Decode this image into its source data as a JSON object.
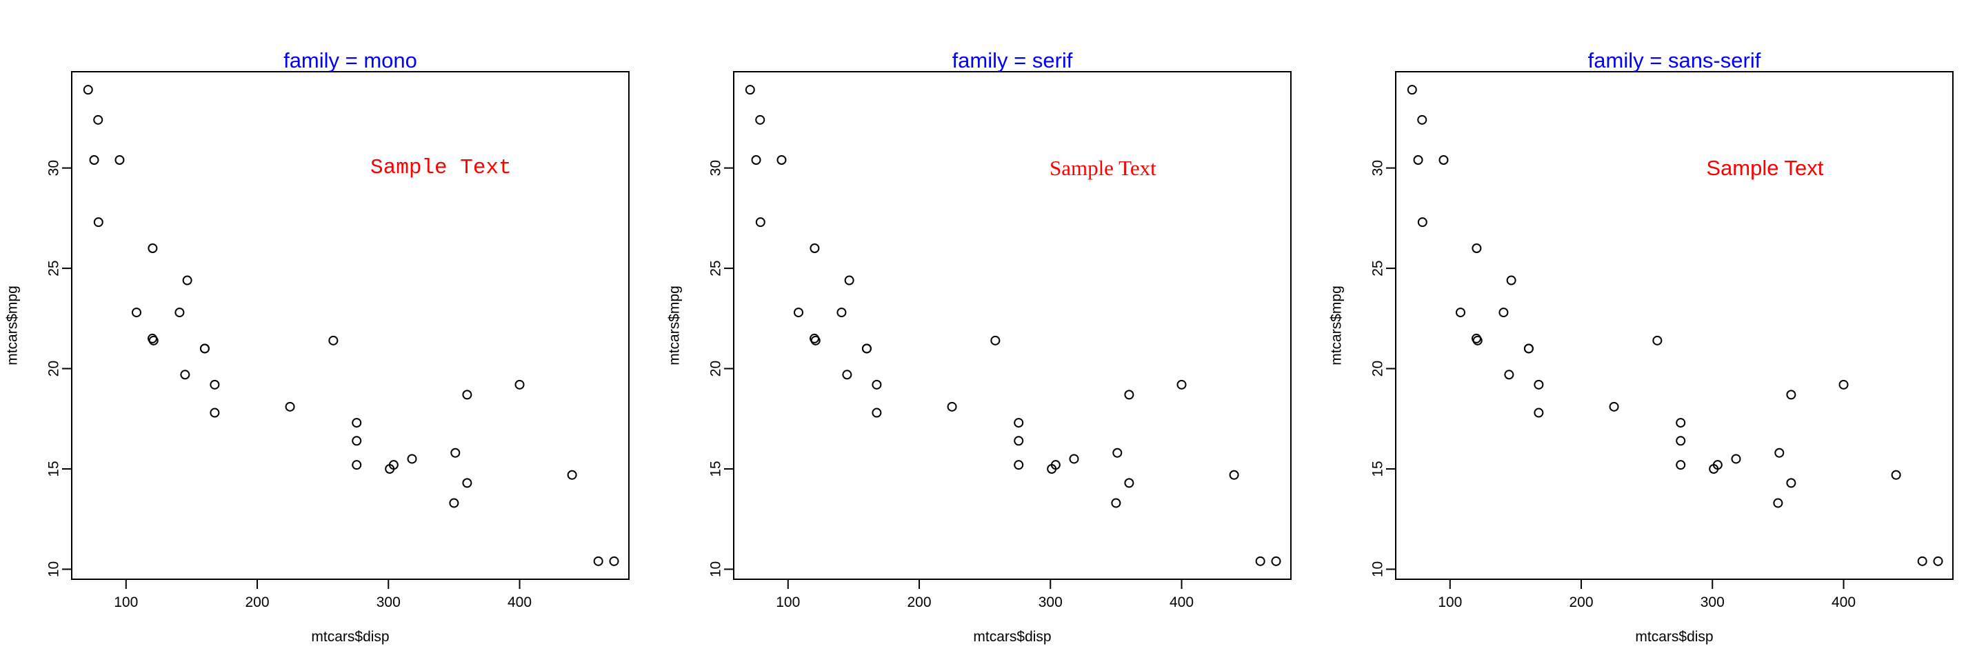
{
  "chart_data": [
    {
      "type": "scatter",
      "title": "family =  mono",
      "xlabel": "mtcars$disp",
      "ylabel": "mtcars$mpg",
      "xticks": [
        100,
        200,
        300,
        400
      ],
      "yticks": [
        10,
        15,
        20,
        25,
        30
      ],
      "xlim": [
        58.6,
        483.3
      ],
      "ylim": [
        9.5,
        34.8
      ],
      "annotation": {
        "text": "Sample Text",
        "family": "mono",
        "x": 340,
        "y": 30,
        "color": "#ff0000"
      },
      "points": [
        [
          160,
          21.0
        ],
        [
          160,
          21.0
        ],
        [
          108,
          22.8
        ],
        [
          258,
          21.4
        ],
        [
          360,
          18.7
        ],
        [
          225,
          18.1
        ],
        [
          360,
          14.3
        ],
        [
          146.7,
          24.4
        ],
        [
          140.8,
          22.8
        ],
        [
          167.6,
          19.2
        ],
        [
          167.6,
          17.8
        ],
        [
          275.8,
          16.4
        ],
        [
          275.8,
          17.3
        ],
        [
          275.8,
          15.2
        ],
        [
          472,
          10.4
        ],
        [
          460,
          10.4
        ],
        [
          440,
          14.7
        ],
        [
          78.7,
          32.4
        ],
        [
          75.7,
          30.4
        ],
        [
          71.1,
          33.9
        ],
        [
          120.1,
          21.5
        ],
        [
          318,
          15.5
        ],
        [
          304,
          15.2
        ],
        [
          350,
          13.3
        ],
        [
          400,
          19.2
        ],
        [
          79,
          27.3
        ],
        [
          120.3,
          26.0
        ],
        [
          95.1,
          30.4
        ],
        [
          351,
          15.8
        ],
        [
          145,
          19.7
        ],
        [
          301,
          15.0
        ],
        [
          121,
          21.4
        ]
      ]
    },
    {
      "type": "scatter",
      "title": "family =  serif",
      "xlabel": "mtcars$disp",
      "ylabel": "mtcars$mpg",
      "xticks": [
        100,
        200,
        300,
        400
      ],
      "yticks": [
        10,
        15,
        20,
        25,
        30
      ],
      "xlim": [
        58.6,
        483.3
      ],
      "ylim": [
        9.5,
        34.8
      ],
      "annotation": {
        "text": "Sample Text",
        "family": "serif",
        "x": 340,
        "y": 30,
        "color": "#ff0000"
      },
      "points": [
        [
          160,
          21.0
        ],
        [
          160,
          21.0
        ],
        [
          108,
          22.8
        ],
        [
          258,
          21.4
        ],
        [
          360,
          18.7
        ],
        [
          225,
          18.1
        ],
        [
          360,
          14.3
        ],
        [
          146.7,
          24.4
        ],
        [
          140.8,
          22.8
        ],
        [
          167.6,
          19.2
        ],
        [
          167.6,
          17.8
        ],
        [
          275.8,
          16.4
        ],
        [
          275.8,
          17.3
        ],
        [
          275.8,
          15.2
        ],
        [
          472,
          10.4
        ],
        [
          460,
          10.4
        ],
        [
          440,
          14.7
        ],
        [
          78.7,
          32.4
        ],
        [
          75.7,
          30.4
        ],
        [
          71.1,
          33.9
        ],
        [
          120.1,
          21.5
        ],
        [
          318,
          15.5
        ],
        [
          304,
          15.2
        ],
        [
          350,
          13.3
        ],
        [
          400,
          19.2
        ],
        [
          79,
          27.3
        ],
        [
          120.3,
          26.0
        ],
        [
          95.1,
          30.4
        ],
        [
          351,
          15.8
        ],
        [
          145,
          19.7
        ],
        [
          301,
          15.0
        ],
        [
          121,
          21.4
        ]
      ]
    },
    {
      "type": "scatter",
      "title": "family =  sans-serif",
      "xlabel": "mtcars$disp",
      "ylabel": "mtcars$mpg",
      "xticks": [
        100,
        200,
        300,
        400
      ],
      "yticks": [
        10,
        15,
        20,
        25,
        30
      ],
      "xlim": [
        58.6,
        483.3
      ],
      "ylim": [
        9.5,
        34.8
      ],
      "annotation": {
        "text": "Sample Text",
        "family": "sans-serif",
        "x": 340,
        "y": 30,
        "color": "#ff0000"
      },
      "points": [
        [
          160,
          21.0
        ],
        [
          160,
          21.0
        ],
        [
          108,
          22.8
        ],
        [
          258,
          21.4
        ],
        [
          360,
          18.7
        ],
        [
          225,
          18.1
        ],
        [
          360,
          14.3
        ],
        [
          146.7,
          24.4
        ],
        [
          140.8,
          22.8
        ],
        [
          167.6,
          19.2
        ],
        [
          167.6,
          17.8
        ],
        [
          275.8,
          16.4
        ],
        [
          275.8,
          17.3
        ],
        [
          275.8,
          15.2
        ],
        [
          472,
          10.4
        ],
        [
          460,
          10.4
        ],
        [
          440,
          14.7
        ],
        [
          78.7,
          32.4
        ],
        [
          75.7,
          30.4
        ],
        [
          71.1,
          33.9
        ],
        [
          120.1,
          21.5
        ],
        [
          318,
          15.5
        ],
        [
          304,
          15.2
        ],
        [
          350,
          13.3
        ],
        [
          400,
          19.2
        ],
        [
          79,
          27.3
        ],
        [
          120.3,
          26.0
        ],
        [
          95.1,
          30.4
        ],
        [
          351,
          15.8
        ],
        [
          145,
          19.7
        ],
        [
          301,
          15.0
        ],
        [
          121,
          21.4
        ]
      ]
    }
  ],
  "colors": {
    "title": "#0000ff",
    "annotation": "#ff0000",
    "points": "#000000"
  }
}
